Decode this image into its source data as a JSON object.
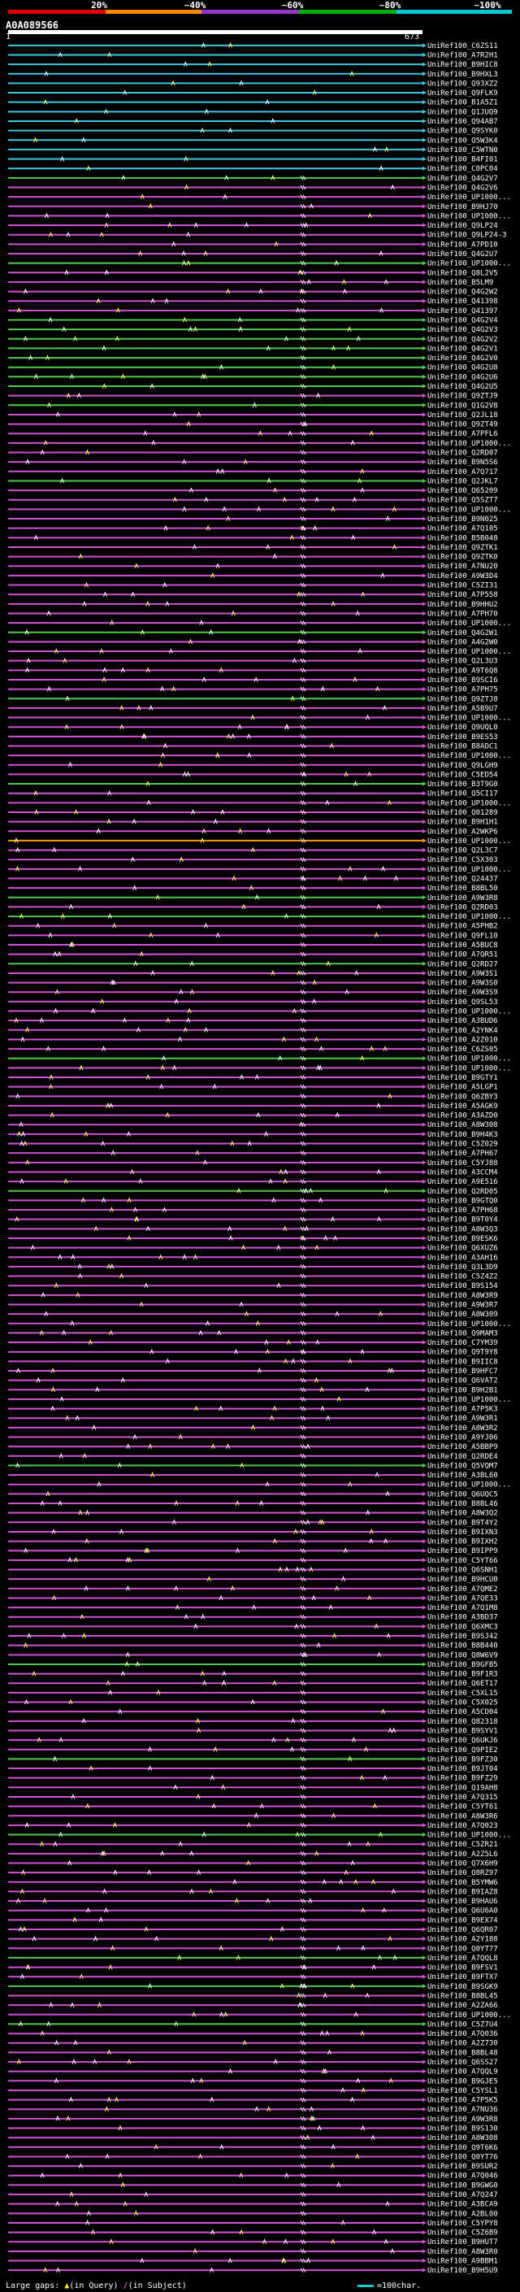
{
  "scale": {
    "labels": [
      "20%",
      "~40%",
      "~60%",
      "~80%",
      "~100%"
    ],
    "colors": [
      "#e00000",
      "#ff8800",
      "#9933cc",
      "#00b000",
      "#00c8d8"
    ]
  },
  "query": {
    "id": "A0A089566",
    "start": "1",
    "end": "673"
  },
  "legend": {
    "prefix": "Large gaps:",
    "in_query": "(in Query)",
    "in_subject": "(in Subject)",
    "scale_text": "=100char."
  },
  "identity_colors": {
    "cyan": "#3cc8e0",
    "green": "#4fc84f",
    "magenta": "#d24fd2",
    "orange": "#ff9900"
  },
  "hits": [
    {
      "label": "UniRef100_C6ZS11",
      "band": "cyan"
    },
    {
      "label": "UniRef100_A7R2H1",
      "band": "cyan"
    },
    {
      "label": "UniRef100_B9HIC8",
      "band": "cyan"
    },
    {
      "label": "UniRef100_B9HXL3",
      "band": "cyan"
    },
    {
      "label": "UniRef100_Q93XZ2",
      "band": "cyan"
    },
    {
      "label": "UniRef100_Q9FLK9",
      "band": "cyan"
    },
    {
      "label": "UniRef100_B1A5Z1",
      "band": "cyan"
    },
    {
      "label": "UniRef100_Q1JUQ9",
      "band": "cyan"
    },
    {
      "label": "UniRef100_Q94AB7",
      "band": "cyan"
    },
    {
      "label": "UniRef100_Q9SYK0",
      "band": "cyan"
    },
    {
      "label": "UniRef100_Q5W3K4",
      "band": "cyan"
    },
    {
      "label": "UniRef100_C5WTN0",
      "band": "cyan"
    },
    {
      "label": "UniRef100_B4FI01",
      "band": "cyan"
    },
    {
      "label": "UniRef100_C0PC04",
      "band": "cyan"
    },
    {
      "label": "UniRef100_Q4G2V7",
      "band": "green"
    },
    {
      "label": "UniRef100_Q4G2V6",
      "band": "magenta"
    },
    {
      "label": "UniRef100_UP1000...",
      "band": "magenta"
    },
    {
      "label": "UniRef100_B9HJ70",
      "band": "magenta"
    },
    {
      "label": "UniRef100_UP1000...",
      "band": "magenta"
    },
    {
      "label": "UniRef100_Q9LP24",
      "band": "magenta"
    },
    {
      "label": "UniRef100_Q9LP24-3",
      "band": "magenta"
    },
    {
      "label": "UniRef100_A7PD10",
      "band": "magenta"
    },
    {
      "label": "UniRef100_Q4G2U7",
      "band": "magenta"
    },
    {
      "label": "UniRef100_UP1000...",
      "band": "green"
    },
    {
      "label": "UniRef100_Q8L2V5",
      "band": "magenta"
    },
    {
      "label": "UniRef100_B5LM9",
      "band": "magenta"
    },
    {
      "label": "UniRef100_Q4G2W2",
      "band": "magenta"
    },
    {
      "label": "UniRef100_Q41398",
      "band": "magenta"
    },
    {
      "label": "UniRef100_Q41397",
      "band": "magenta"
    },
    {
      "label": "UniRef100_Q4G2V4",
      "band": "green"
    },
    {
      "label": "UniRef100_Q4G2V3",
      "band": "green"
    },
    {
      "label": "UniRef100_Q4G2V2",
      "band": "green"
    },
    {
      "label": "UniRef100_Q4G2V1",
      "band": "green"
    },
    {
      "label": "UniRef100_Q4G2V0",
      "band": "green"
    },
    {
      "label": "UniRef100_Q4G2U8",
      "band": "green"
    },
    {
      "label": "UniRef100_Q4G2U6",
      "band": "green"
    },
    {
      "label": "UniRef100_Q4G2U5",
      "band": "green"
    },
    {
      "label": "UniRef100_Q9ZTJ9",
      "band": "magenta"
    },
    {
      "label": "UniRef100_Q1G2V8",
      "band": "green"
    },
    {
      "label": "UniRef100_Q2JL18",
      "band": "magenta"
    },
    {
      "label": "UniRef100_Q9ZT49",
      "band": "magenta"
    },
    {
      "label": "UniRef100_A7PFL6",
      "band": "magenta"
    },
    {
      "label": "UniRef100_UP1000...",
      "band": "magenta"
    },
    {
      "label": "UniRef100_Q2RD07",
      "band": "magenta"
    },
    {
      "label": "UniRef100_B9N5S6",
      "band": "magenta"
    },
    {
      "label": "UniRef100_A7Q717",
      "band": "magenta"
    },
    {
      "label": "UniRef100_Q2JKL7",
      "band": "green"
    },
    {
      "label": "UniRef100_Q65209",
      "band": "magenta"
    },
    {
      "label": "UniRef100_Q5SZT7",
      "band": "magenta"
    },
    {
      "label": "UniRef100_UP1000...",
      "band": "magenta"
    },
    {
      "label": "UniRef100_B9N025",
      "band": "magenta"
    },
    {
      "label": "UniRef100_A7Q105",
      "band": "magenta"
    },
    {
      "label": "UniRef100_B5B048",
      "band": "magenta"
    },
    {
      "label": "UniRef100_Q9ZTK1",
      "band": "magenta"
    },
    {
      "label": "UniRef100_Q9ZTK0",
      "band": "magenta"
    },
    {
      "label": "UniRef100_A7NU20",
      "band": "magenta"
    },
    {
      "label": "UniRef100_A9W3D4",
      "band": "magenta"
    },
    {
      "label": "UniRef100_C5ZI31",
      "band": "magenta"
    },
    {
      "label": "UniRef100_A7P558",
      "band": "magenta"
    },
    {
      "label": "UniRef100_B9HHU2",
      "band": "magenta"
    },
    {
      "label": "UniRef100_A7PH70",
      "band": "magenta"
    },
    {
      "label": "UniRef100_UP1000...",
      "band": "magenta"
    },
    {
      "label": "UniRef100_Q4G2W1",
      "band": "green"
    },
    {
      "label": "UniRef100_A4G2W0",
      "band": "magenta"
    },
    {
      "label": "UniRef100_UP1000...",
      "band": "magenta"
    },
    {
      "label": "UniRef100_Q2L3U3",
      "band": "magenta"
    },
    {
      "label": "UniRef100_A9T6Q8",
      "band": "magenta"
    },
    {
      "label": "UniRef100_B9SCI6",
      "band": "magenta"
    },
    {
      "label": "UniRef100_A7PH75",
      "band": "magenta"
    },
    {
      "label": "UniRef100_Q9ZTJ8",
      "band": "green"
    },
    {
      "label": "UniRef100_A5B9U7",
      "band": "magenta"
    },
    {
      "label": "UniRef100_UP1000...",
      "band": "magenta"
    },
    {
      "label": "UniRef100_Q9UQL0",
      "band": "magenta"
    },
    {
      "label": "UniRef100_B9ES53",
      "band": "magenta"
    },
    {
      "label": "UniRef100_B8ADC1",
      "band": "magenta"
    },
    {
      "label": "UniRef100_UP1000...",
      "band": "magenta"
    },
    {
      "label": "UniRef100_Q9LGH9",
      "band": "magenta"
    },
    {
      "label": "UniRef100_C5ED54",
      "band": "magenta"
    },
    {
      "label": "UniRef100_B3T9G0",
      "band": "green"
    },
    {
      "label": "UniRef100_Q5CI17",
      "band": "magenta"
    },
    {
      "label": "UniRef100_UP1000...",
      "band": "magenta"
    },
    {
      "label": "UniRef100_Q01289",
      "band": "magenta"
    },
    {
      "label": "UniRef100_B9H1H1",
      "band": "magenta"
    },
    {
      "label": "UniRef100_A2WKP6",
      "band": "magenta"
    },
    {
      "label": "UniRef100_UP1000...",
      "band": "orange"
    },
    {
      "label": "UniRef100_Q2L3C7",
      "band": "magenta"
    },
    {
      "label": "UniRef100_C5X303",
      "band": "magenta"
    },
    {
      "label": "UniRef100_UP1000...",
      "band": "magenta"
    },
    {
      "label": "UniRef100_Q24437",
      "band": "magenta"
    },
    {
      "label": "UniRef100_B8BL50",
      "band": "magenta"
    },
    {
      "label": "UniRef100_A9W3R8",
      "band": "green"
    },
    {
      "label": "UniRef100_Q2RD03",
      "band": "magenta"
    },
    {
      "label": "UniRef100_UP1000...",
      "band": "green"
    },
    {
      "label": "UniRef100_A5PHB2",
      "band": "magenta"
    },
    {
      "label": "UniRef100_Q9FL10",
      "band": "magenta"
    },
    {
      "label": "UniRef100_A5BUC8",
      "band": "magenta"
    },
    {
      "label": "UniRef100_A7QR51",
      "band": "magenta"
    },
    {
      "label": "UniRef100_Q2RD27",
      "band": "green"
    },
    {
      "label": "UniRef100_A9W3S1",
      "band": "magenta"
    },
    {
      "label": "UniRef100_A9W3S0",
      "band": "magenta"
    },
    {
      "label": "UniRef100_A9W3S9",
      "band": "magenta"
    },
    {
      "label": "UniRef100_Q9SL53",
      "band": "magenta"
    },
    {
      "label": "UniRef100_UP1000...",
      "band": "magenta"
    },
    {
      "label": "UniRef100_A3BUD6",
      "band": "magenta"
    },
    {
      "label": "UniRef100_A2YNK4",
      "band": "magenta"
    },
    {
      "label": "UniRef100_A2Z010",
      "band": "magenta"
    },
    {
      "label": "UniRef100_C6ZS05",
      "band": "magenta"
    },
    {
      "label": "UniRef100_UP1000...",
      "band": "green"
    },
    {
      "label": "UniRef100_UP1000...",
      "band": "magenta"
    },
    {
      "label": "UniRef100_B9GTY1",
      "band": "magenta"
    },
    {
      "label": "UniRef100_A5LGP1",
      "band": "magenta"
    },
    {
      "label": "UniRef100_Q6ZBY3",
      "band": "magenta"
    },
    {
      "label": "UniRef100_A5AGK9",
      "band": "magenta"
    },
    {
      "label": "UniRef100_A3AZD0",
      "band": "magenta"
    },
    {
      "label": "UniRef100_A8W308",
      "band": "magenta"
    },
    {
      "label": "UniRef100_B9H4K3",
      "band": "magenta"
    },
    {
      "label": "UniRef100_C5Z029",
      "band": "magenta"
    },
    {
      "label": "UniRef100_A7PH67",
      "band": "magenta"
    },
    {
      "label": "UniRef100_C5YJ88",
      "band": "magenta"
    },
    {
      "label": "UniRef100_A3CCM4",
      "band": "magenta"
    },
    {
      "label": "UniRef100_A9E516",
      "band": "magenta"
    },
    {
      "label": "UniRef100_Q2RD05",
      "band": "green"
    },
    {
      "label": "UniRef100_B9GTQ0",
      "band": "magenta"
    },
    {
      "label": "UniRef100_A7PH68",
      "band": "magenta"
    },
    {
      "label": "UniRef100_B9T0Y4",
      "band": "magenta"
    },
    {
      "label": "UniRef100_A8W3Q3",
      "band": "magenta"
    },
    {
      "label": "UniRef100_B9ESK6",
      "band": "magenta"
    },
    {
      "label": "UniRef100_Q6XUZ6",
      "band": "magenta"
    },
    {
      "label": "UniRef100_A3AH16",
      "band": "magenta"
    },
    {
      "label": "UniRef100_Q3L3D9",
      "band": "magenta"
    },
    {
      "label": "UniRef100_C5Z4Z2",
      "band": "magenta"
    },
    {
      "label": "UniRef100_B9S154",
      "band": "magenta"
    },
    {
      "label": "UniRef100_A8W3R9",
      "band": "magenta"
    },
    {
      "label": "UniRef100_A9W3R7",
      "band": "magenta"
    },
    {
      "label": "UniRef100_A8W309",
      "band": "magenta"
    },
    {
      "label": "UniRef100_UP1000...",
      "band": "magenta"
    },
    {
      "label": "UniRef100_Q9MAM3",
      "band": "magenta"
    },
    {
      "label": "UniRef100_C7YM39",
      "band": "magenta"
    },
    {
      "label": "UniRef100_Q9T9Y8",
      "band": "magenta"
    },
    {
      "label": "UniRef100_B9IIC8",
      "band": "magenta"
    },
    {
      "label": "UniRef100_B9HFC7",
      "band": "magenta"
    },
    {
      "label": "UniRef100_Q6VAT2",
      "band": "magenta"
    },
    {
      "label": "UniRef100_B9H2B1",
      "band": "magenta"
    },
    {
      "label": "UniRef100_UP1000...",
      "band": "magenta"
    },
    {
      "label": "UniRef100_A7P5K3",
      "band": "magenta"
    },
    {
      "label": "UniRef100_A9W3R1",
      "band": "magenta"
    },
    {
      "label": "UniRef100_A8W3R2",
      "band": "magenta"
    },
    {
      "label": "UniRef100_A9YJ06",
      "band": "magenta"
    },
    {
      "label": "UniRef100_A5BBP9",
      "band": "magenta"
    },
    {
      "label": "UniRef100_Q2RDE4",
      "band": "magenta"
    },
    {
      "label": "UniRef100_Q5VQM7",
      "band": "green"
    },
    {
      "label": "UniRef100_A3BL60",
      "band": "magenta"
    },
    {
      "label": "UniRef100_UP1000...",
      "band": "magenta"
    },
    {
      "label": "UniRef100_Q6UQC5",
      "band": "magenta"
    },
    {
      "label": "UniRef100_B8BL46",
      "band": "magenta"
    },
    {
      "label": "UniRef100_A8W3Q2",
      "band": "magenta"
    },
    {
      "label": "UniRef100_B9T4Y2",
      "band": "magenta"
    },
    {
      "label": "UniRef100_B9IXN3",
      "band": "magenta"
    },
    {
      "label": "UniRef100_B9IXH2",
      "band": "magenta"
    },
    {
      "label": "UniRef100_B9IPP9",
      "band": "magenta"
    },
    {
      "label": "UniRef100_C5YT66",
      "band": "magenta"
    },
    {
      "label": "UniRef100_Q6SNH1",
      "band": "magenta"
    },
    {
      "label": "UniRef100_B9HCU0",
      "band": "magenta"
    },
    {
      "label": "UniRef100_A7QME2",
      "band": "magenta"
    },
    {
      "label": "UniRef100_A7QE33",
      "band": "magenta"
    },
    {
      "label": "UniRef100_A7Q1M8",
      "band": "magenta"
    },
    {
      "label": "UniRef100_A3BD37",
      "band": "magenta"
    },
    {
      "label": "UniRef100_Q6XMC3",
      "band": "magenta"
    },
    {
      "label": "UniRef100_B9SJ42",
      "band": "magenta"
    },
    {
      "label": "UniRef100_B8B440",
      "band": "magenta"
    },
    {
      "label": "UniRef100_Q8W6V9",
      "band": "magenta"
    },
    {
      "label": "UniRef100_B9GFB5",
      "band": "green"
    },
    {
      "label": "UniRef100_B9F1R3",
      "band": "magenta"
    },
    {
      "label": "UniRef100_Q6ET17",
      "band": "magenta"
    },
    {
      "label": "UniRef100_C5XL15",
      "band": "magenta"
    },
    {
      "label": "UniRef100_C5X025",
      "band": "magenta"
    },
    {
      "label": "UniRef100_A5CD04",
      "band": "magenta"
    },
    {
      "label": "UniRef100_Q82318",
      "band": "magenta"
    },
    {
      "label": "UniRef100_B9SYV1",
      "band": "magenta"
    },
    {
      "label": "UniRef100_Q6UKJ6",
      "band": "magenta"
    },
    {
      "label": "UniRef100_Q9PIE2",
      "band": "magenta"
    },
    {
      "label": "UniRef100_B9FZ30",
      "band": "green"
    },
    {
      "label": "UniRef100_B9JT04",
      "band": "magenta"
    },
    {
      "label": "UniRef100_B9FZ29",
      "band": "magenta"
    },
    {
      "label": "UniRef100_Q19AH8",
      "band": "magenta"
    },
    {
      "label": "UniRef100_A7Q315",
      "band": "magenta"
    },
    {
      "label": "UniRef100_C5YT61",
      "band": "magenta"
    },
    {
      "label": "UniRef100_A8W3R6",
      "band": "magenta"
    },
    {
      "label": "UniRef100_A7Q023",
      "band": "magenta"
    },
    {
      "label": "UniRef100_UP1000...",
      "band": "green"
    },
    {
      "label": "UniRef100_C5ZR21",
      "band": "magenta"
    },
    {
      "label": "UniRef100_A2Z5L6",
      "band": "magenta"
    },
    {
      "label": "UniRef100_Q7X6H9",
      "band": "magenta"
    },
    {
      "label": "UniRef100_Q8RZ97",
      "band": "magenta"
    },
    {
      "label": "UniRef100_B5YMW6",
      "band": "magenta"
    },
    {
      "label": "UniRef100_B9IAZ8",
      "band": "magenta"
    },
    {
      "label": "UniRef100_B9HAU6",
      "band": "magenta"
    },
    {
      "label": "UniRef100_Q6U6A0",
      "band": "magenta"
    },
    {
      "label": "UniRef100_B9EX74",
      "band": "magenta"
    },
    {
      "label": "UniRef100_Q6QR07",
      "band": "magenta"
    },
    {
      "label": "UniRef100_A2Y188",
      "band": "magenta"
    },
    {
      "label": "UniRef100_Q0YT77",
      "band": "magenta"
    },
    {
      "label": "UniRef100_A7QQL8",
      "band": "green"
    },
    {
      "label": "UniRef100_B9FSV1",
      "band": "magenta"
    },
    {
      "label": "UniRef100_B9FTX7",
      "band": "magenta"
    },
    {
      "label": "UniRef100_B9SGK9",
      "band": "green"
    },
    {
      "label": "UniRef100_B8BL45",
      "band": "magenta"
    },
    {
      "label": "UniRef100_A2ZA66",
      "band": "magenta"
    },
    {
      "label": "UniRef100_UP1000...",
      "band": "magenta"
    },
    {
      "label": "UniRef100_C5Z7U4",
      "band": "green"
    },
    {
      "label": "UniRef100_A7Q036",
      "band": "magenta"
    },
    {
      "label": "UniRef100_A2Z730",
      "band": "magenta"
    },
    {
      "label": "UniRef100_B8BL48",
      "band": "magenta"
    },
    {
      "label": "UniRef100_Q6SS27",
      "band": "magenta"
    },
    {
      "label": "UniRef100_A7QQL9",
      "band": "magenta"
    },
    {
      "label": "UniRef100_B9GJE5",
      "band": "magenta"
    },
    {
      "label": "UniRef100_C5YSL1",
      "band": "magenta"
    },
    {
      "label": "UniRef100_A7P5K5",
      "band": "magenta"
    },
    {
      "label": "UniRef100_A7NU36",
      "band": "magenta"
    },
    {
      "label": "UniRef100_A9W3R8",
      "band": "magenta"
    },
    {
      "label": "UniRef100_B9S130",
      "band": "magenta"
    },
    {
      "label": "UniRef100_A8W308",
      "band": "magenta"
    },
    {
      "label": "UniRef100_Q9T6K6",
      "band": "magenta"
    },
    {
      "label": "UniRef100_Q0YT76",
      "band": "magenta"
    },
    {
      "label": "UniRef100_B9SUR2",
      "band": "magenta"
    },
    {
      "label": "UniRef100_A7Q046",
      "band": "magenta"
    },
    {
      "label": "UniRef100_B9GWG0",
      "band": "magenta"
    },
    {
      "label": "UniRef100_A7Q247",
      "band": "magenta"
    },
    {
      "label": "UniRef100_A3BCA9",
      "band": "magenta"
    },
    {
      "label": "UniRef100_A2BL00",
      "band": "magenta"
    },
    {
      "label": "UniRef100_C5YPY8",
      "band": "magenta"
    },
    {
      "label": "UniRef100_C5Z6B9",
      "band": "magenta"
    },
    {
      "label": "UniRef100_B9HUT7",
      "band": "magenta"
    },
    {
      "label": "UniRef100_A8W3R0",
      "band": "magenta"
    },
    {
      "label": "UniRef100_A9BBM1",
      "band": "magenta"
    },
    {
      "label": "UniRef100_B9H5U9",
      "band": "magenta"
    }
  ]
}
